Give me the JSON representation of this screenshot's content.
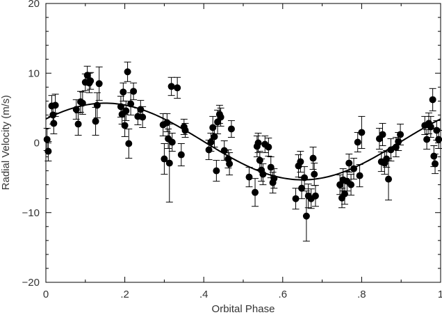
{
  "chart_data": {
    "type": "scatter",
    "xlabel": "Orbital Phase",
    "ylabel": "Radial Velocity (m/s)",
    "xlim": [
      0,
      1
    ],
    "ylim": [
      -20,
      20
    ],
    "x_ticks": [
      {
        "value": 0,
        "label": "0"
      },
      {
        "value": 0.2,
        "label": ".2"
      },
      {
        "value": 0.4,
        "label": ".4"
      },
      {
        "value": 0.6,
        "label": ".6"
      },
      {
        "value": 0.8,
        "label": ".8"
      },
      {
        "value": 1,
        "label": "1"
      }
    ],
    "y_ticks": [
      {
        "value": -20,
        "label": "−20"
      },
      {
        "value": -10,
        "label": "−10"
      },
      {
        "value": 0,
        "label": "0"
      },
      {
        "value": 10,
        "label": "10"
      },
      {
        "value": 20,
        "label": "20"
      }
    ],
    "grid": false,
    "marker_color": "#000000",
    "fit_curve": {
      "amplitude": 5.5,
      "offset": 0.2,
      "peak_phase": 0.15,
      "color": "#000000"
    },
    "points": [
      {
        "x": 0.003,
        "y": 0.5,
        "err": 1.6
      },
      {
        "x": 0.006,
        "y": -1.2,
        "err": 1.4
      },
      {
        "x": 0.015,
        "y": 5.3,
        "err": 1.5
      },
      {
        "x": 0.018,
        "y": 4.0,
        "err": 1.3
      },
      {
        "x": 0.02,
        "y": 2.8,
        "err": 1.5
      },
      {
        "x": 0.024,
        "y": 5.4,
        "err": 1.6
      },
      {
        "x": 0.077,
        "y": 4.8,
        "err": 1.4
      },
      {
        "x": 0.082,
        "y": 2.7,
        "err": 1.6
      },
      {
        "x": 0.088,
        "y": 5.9,
        "err": 1.5
      },
      {
        "x": 0.093,
        "y": 5.7,
        "err": 1.6
      },
      {
        "x": 0.1,
        "y": 8.7,
        "err": 1.2
      },
      {
        "x": 0.105,
        "y": 9.7,
        "err": 1.3
      },
      {
        "x": 0.11,
        "y": 8.6,
        "err": 1.4
      },
      {
        "x": 0.113,
        "y": 8.9,
        "err": 1.2
      },
      {
        "x": 0.126,
        "y": 3.1,
        "err": 2.0
      },
      {
        "x": 0.13,
        "y": 5.4,
        "err": 1.8
      },
      {
        "x": 0.135,
        "y": 8.5,
        "err": 2.4
      },
      {
        "x": 0.19,
        "y": 5.2,
        "err": 1.5
      },
      {
        "x": 0.193,
        "y": 4.1,
        "err": 1.4
      },
      {
        "x": 0.196,
        "y": 7.3,
        "err": 1.3
      },
      {
        "x": 0.2,
        "y": 2.5,
        "err": 1.6
      },
      {
        "x": 0.203,
        "y": 4.6,
        "err": 1.4
      },
      {
        "x": 0.207,
        "y": 10.2,
        "err": 1.4
      },
      {
        "x": 0.21,
        "y": -0.1,
        "err": 2.1
      },
      {
        "x": 0.215,
        "y": 5.6,
        "err": 1.6
      },
      {
        "x": 0.222,
        "y": 7.4,
        "err": 1.2
      },
      {
        "x": 0.233,
        "y": 3.8,
        "err": 1.2
      },
      {
        "x": 0.24,
        "y": 4.8,
        "err": 1.3
      },
      {
        "x": 0.245,
        "y": 3.7,
        "err": 1.5
      },
      {
        "x": 0.297,
        "y": 2.6,
        "err": 1.6
      },
      {
        "x": 0.3,
        "y": -2.3,
        "err": 2.2
      },
      {
        "x": 0.307,
        "y": 2.9,
        "err": 1.3
      },
      {
        "x": 0.31,
        "y": 0.6,
        "err": 1.4
      },
      {
        "x": 0.313,
        "y": -2.9,
        "err": 5.6
      },
      {
        "x": 0.318,
        "y": 8.1,
        "err": 1.3
      },
      {
        "x": 0.32,
        "y": 0.1,
        "err": 1.3
      },
      {
        "x": 0.333,
        "y": 7.9,
        "err": 1.5
      },
      {
        "x": 0.343,
        "y": -1.7,
        "err": 1.6
      },
      {
        "x": 0.35,
        "y": 2.3,
        "err": 1.1
      },
      {
        "x": 0.353,
        "y": 1.8,
        "err": 1.0
      },
      {
        "x": 0.413,
        "y": -1.0,
        "err": 1.4
      },
      {
        "x": 0.418,
        "y": 0.1,
        "err": 1.3
      },
      {
        "x": 0.423,
        "y": 2.2,
        "err": 1.6
      },
      {
        "x": 0.427,
        "y": 0.9,
        "err": 1.5
      },
      {
        "x": 0.432,
        "y": -4.0,
        "err": 1.5
      },
      {
        "x": 0.435,
        "y": 3.0,
        "err": 1.7
      },
      {
        "x": 0.44,
        "y": 4.1,
        "err": 1.3
      },
      {
        "x": 0.443,
        "y": 3.7,
        "err": 1.3
      },
      {
        "x": 0.452,
        "y": -1.1,
        "err": 1.4
      },
      {
        "x": 0.462,
        "y": -2.3,
        "err": 1.3
      },
      {
        "x": 0.465,
        "y": -3.0,
        "err": 1.6
      },
      {
        "x": 0.47,
        "y": 2.0,
        "err": 1.2
      },
      {
        "x": 0.515,
        "y": -4.9,
        "err": 1.4
      },
      {
        "x": 0.53,
        "y": -7.1,
        "err": 2.0
      },
      {
        "x": 0.535,
        "y": -0.5,
        "err": 1.5
      },
      {
        "x": 0.538,
        "y": 0.0,
        "err": 1.4
      },
      {
        "x": 0.542,
        "y": -2.5,
        "err": 1.3
      },
      {
        "x": 0.546,
        "y": -3.9,
        "err": 1.6
      },
      {
        "x": 0.55,
        "y": -4.5,
        "err": 1.5
      },
      {
        "x": 0.555,
        "y": -0.2,
        "err": 1.2
      },
      {
        "x": 0.564,
        "y": -0.6,
        "err": 1.3
      },
      {
        "x": 0.57,
        "y": -3.5,
        "err": 1.5
      },
      {
        "x": 0.575,
        "y": -5.7,
        "err": 1.5
      },
      {
        "x": 0.578,
        "y": -5.1,
        "err": 1.4
      },
      {
        "x": 0.633,
        "y": -8.0,
        "err": 1.5
      },
      {
        "x": 0.64,
        "y": -3.3,
        "err": 1.6
      },
      {
        "x": 0.645,
        "y": -2.7,
        "err": 1.5
      },
      {
        "x": 0.648,
        "y": -6.5,
        "err": 1.5
      },
      {
        "x": 0.655,
        "y": -5.0,
        "err": 1.6
      },
      {
        "x": 0.66,
        "y": -10.5,
        "err": 3.6
      },
      {
        "x": 0.665,
        "y": -7.6,
        "err": 1.7
      },
      {
        "x": 0.672,
        "y": -8.0,
        "err": 1.4
      },
      {
        "x": 0.677,
        "y": -2.2,
        "err": 1.6
      },
      {
        "x": 0.68,
        "y": -4.5,
        "err": 1.6
      },
      {
        "x": 0.683,
        "y": -7.6,
        "err": 1.5
      },
      {
        "x": 0.745,
        "y": -6.0,
        "err": 1.4
      },
      {
        "x": 0.75,
        "y": -7.9,
        "err": 1.4
      },
      {
        "x": 0.753,
        "y": -5.3,
        "err": 1.6
      },
      {
        "x": 0.757,
        "y": -7.3,
        "err": 1.5
      },
      {
        "x": 0.763,
        "y": -5.5,
        "err": 1.4
      },
      {
        "x": 0.768,
        "y": -2.9,
        "err": 1.3
      },
      {
        "x": 0.773,
        "y": -6.0,
        "err": 1.5
      },
      {
        "x": 0.78,
        "y": -3.7,
        "err": 1.5
      },
      {
        "x": 0.79,
        "y": 0.1,
        "err": 1.4
      },
      {
        "x": 0.795,
        "y": -4.7,
        "err": 1.6
      },
      {
        "x": 0.8,
        "y": 1.5,
        "err": 2.3
      },
      {
        "x": 0.845,
        "y": 0.6,
        "err": 1.5
      },
      {
        "x": 0.85,
        "y": -2.7,
        "err": 1.4
      },
      {
        "x": 0.853,
        "y": 1.2,
        "err": 1.6
      },
      {
        "x": 0.858,
        "y": -2.9,
        "err": 1.6
      },
      {
        "x": 0.863,
        "y": -2.3,
        "err": 1.2
      },
      {
        "x": 0.868,
        "y": -5.2,
        "err": 3.0
      },
      {
        "x": 0.874,
        "y": -1.0,
        "err": 1.6
      },
      {
        "x": 0.887,
        "y": -0.6,
        "err": 1.4
      },
      {
        "x": 0.893,
        "y": 0.2,
        "err": 1.3
      },
      {
        "x": 0.898,
        "y": 1.2,
        "err": 1.5
      },
      {
        "x": 0.96,
        "y": 2.5,
        "err": 1.3
      },
      {
        "x": 0.965,
        "y": 0.5,
        "err": 1.4
      },
      {
        "x": 0.97,
        "y": 2.8,
        "err": 1.5
      },
      {
        "x": 0.975,
        "y": 2.3,
        "err": 1.5
      },
      {
        "x": 0.98,
        "y": 6.2,
        "err": 1.6
      },
      {
        "x": 0.983,
        "y": -1.9,
        "err": 1.5
      },
      {
        "x": 0.986,
        "y": -3.0,
        "err": 1.4
      },
      {
        "x": 0.99,
        "y": 1.8,
        "err": 1.4
      },
      {
        "x": 0.995,
        "y": 0.5,
        "err": 1.3
      }
    ]
  }
}
